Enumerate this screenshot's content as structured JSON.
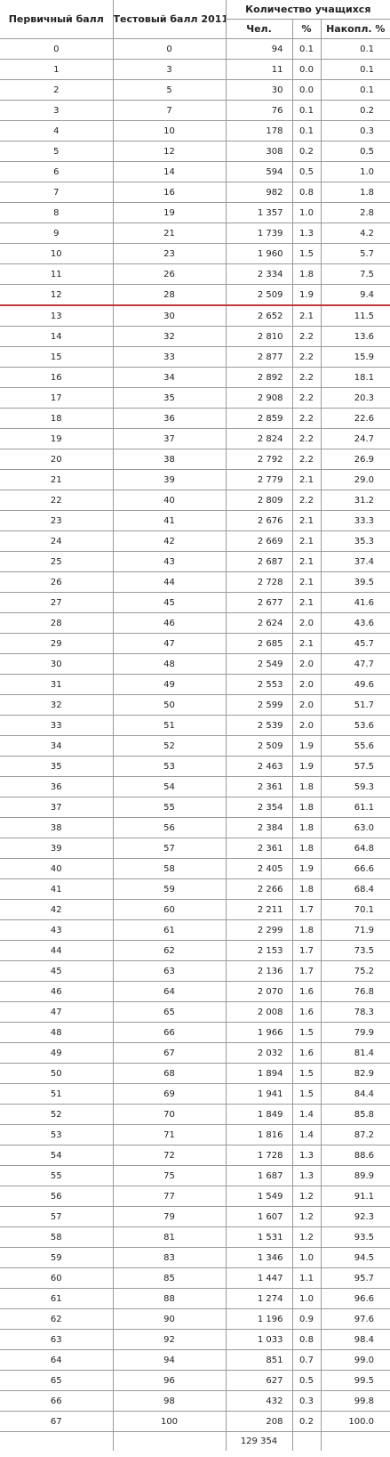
{
  "header": {
    "primary": "Первичный балл",
    "test": "Тестовый балл 2011",
    "students": "Количество учащихся",
    "count": "Чел.",
    "percent": "%",
    "cumulative": "Накопл. %"
  },
  "rows": [
    {
      "p": "0",
      "t": "0",
      "n": "94",
      "pc": "0.1",
      "cum": "0.1"
    },
    {
      "p": "1",
      "t": "3",
      "n": "11",
      "pc": "0.0",
      "cum": "0.1"
    },
    {
      "p": "2",
      "t": "5",
      "n": "30",
      "pc": "0.0",
      "cum": "0.1"
    },
    {
      "p": "3",
      "t": "7",
      "n": "76",
      "pc": "0.1",
      "cum": "0.2"
    },
    {
      "p": "4",
      "t": "10",
      "n": "178",
      "pc": "0.1",
      "cum": "0.3"
    },
    {
      "p": "5",
      "t": "12",
      "n": "308",
      "pc": "0.2",
      "cum": "0.5"
    },
    {
      "p": "6",
      "t": "14",
      "n": "594",
      "pc": "0.5",
      "cum": "1.0"
    },
    {
      "p": "7",
      "t": "16",
      "n": "982",
      "pc": "0.8",
      "cum": "1.8"
    },
    {
      "p": "8",
      "t": "19",
      "n": "1 357",
      "pc": "1.0",
      "cum": "2.8"
    },
    {
      "p": "9",
      "t": "21",
      "n": "1 739",
      "pc": "1.3",
      "cum": "4.2"
    },
    {
      "p": "10",
      "t": "23",
      "n": "1 960",
      "pc": "1.5",
      "cum": "5.7"
    },
    {
      "p": "11",
      "t": "26",
      "n": "2 334",
      "pc": "1.8",
      "cum": "7.5"
    },
    {
      "p": "12",
      "t": "28",
      "n": "2 509",
      "pc": "1.9",
      "cum": "9.4"
    },
    {
      "p": "13",
      "t": "30",
      "n": "2 652",
      "pc": "2.1",
      "cum": "11.5"
    },
    {
      "p": "14",
      "t": "32",
      "n": "2 810",
      "pc": "2.2",
      "cum": "13.6"
    },
    {
      "p": "15",
      "t": "33",
      "n": "2 877",
      "pc": "2.2",
      "cum": "15.9"
    },
    {
      "p": "16",
      "t": "34",
      "n": "2 892",
      "pc": "2.2",
      "cum": "18.1"
    },
    {
      "p": "17",
      "t": "35",
      "n": "2 908",
      "pc": "2.2",
      "cum": "20.3"
    },
    {
      "p": "18",
      "t": "36",
      "n": "2 859",
      "pc": "2.2",
      "cum": "22.6"
    },
    {
      "p": "19",
      "t": "37",
      "n": "2 824",
      "pc": "2.2",
      "cum": "24.7"
    },
    {
      "p": "20",
      "t": "38",
      "n": "2 792",
      "pc": "2.2",
      "cum": "26.9"
    },
    {
      "p": "21",
      "t": "39",
      "n": "2 779",
      "pc": "2.1",
      "cum": "29.0"
    },
    {
      "p": "22",
      "t": "40",
      "n": "2 809",
      "pc": "2.2",
      "cum": "31.2"
    },
    {
      "p": "23",
      "t": "41",
      "n": "2 676",
      "pc": "2.1",
      "cum": "33.3"
    },
    {
      "p": "24",
      "t": "42",
      "n": "2 669",
      "pc": "2.1",
      "cum": "35.3"
    },
    {
      "p": "25",
      "t": "43",
      "n": "2 687",
      "pc": "2.1",
      "cum": "37.4"
    },
    {
      "p": "26",
      "t": "44",
      "n": "2 728",
      "pc": "2.1",
      "cum": "39.5"
    },
    {
      "p": "27",
      "t": "45",
      "n": "2 677",
      "pc": "2.1",
      "cum": "41.6"
    },
    {
      "p": "28",
      "t": "46",
      "n": "2 624",
      "pc": "2.0",
      "cum": "43.6"
    },
    {
      "p": "29",
      "t": "47",
      "n": "2 685",
      "pc": "2.1",
      "cum": "45.7"
    },
    {
      "p": "30",
      "t": "48",
      "n": "2 549",
      "pc": "2.0",
      "cum": "47.7"
    },
    {
      "p": "31",
      "t": "49",
      "n": "2 553",
      "pc": "2.0",
      "cum": "49.6"
    },
    {
      "p": "32",
      "t": "50",
      "n": "2 599",
      "pc": "2.0",
      "cum": "51.7"
    },
    {
      "p": "33",
      "t": "51",
      "n": "2 539",
      "pc": "2.0",
      "cum": "53.6"
    },
    {
      "p": "34",
      "t": "52",
      "n": "2 509",
      "pc": "1.9",
      "cum": "55.6"
    },
    {
      "p": "35",
      "t": "53",
      "n": "2 463",
      "pc": "1.9",
      "cum": "57.5"
    },
    {
      "p": "36",
      "t": "54",
      "n": "2 361",
      "pc": "1.8",
      "cum": "59.3"
    },
    {
      "p": "37",
      "t": "55",
      "n": "2 354",
      "pc": "1.8",
      "cum": "61.1"
    },
    {
      "p": "38",
      "t": "56",
      "n": "2 384",
      "pc": "1.8",
      "cum": "63.0"
    },
    {
      "p": "39",
      "t": "57",
      "n": "2 361",
      "pc": "1.8",
      "cum": "64.8"
    },
    {
      "p": "40",
      "t": "58",
      "n": "2 405",
      "pc": "1.9",
      "cum": "66.6"
    },
    {
      "p": "41",
      "t": "59",
      "n": "2 266",
      "pc": "1.8",
      "cum": "68.4"
    },
    {
      "p": "42",
      "t": "60",
      "n": "2 211",
      "pc": "1.7",
      "cum": "70.1"
    },
    {
      "p": "43",
      "t": "61",
      "n": "2 299",
      "pc": "1.8",
      "cum": "71.9"
    },
    {
      "p": "44",
      "t": "62",
      "n": "2 153",
      "pc": "1.7",
      "cum": "73.5"
    },
    {
      "p": "45",
      "t": "63",
      "n": "2 136",
      "pc": "1.7",
      "cum": "75.2"
    },
    {
      "p": "46",
      "t": "64",
      "n": "2 070",
      "pc": "1.6",
      "cum": "76.8"
    },
    {
      "p": "47",
      "t": "65",
      "n": "2 008",
      "pc": "1.6",
      "cum": "78.3"
    },
    {
      "p": "48",
      "t": "66",
      "n": "1 966",
      "pc": "1.5",
      "cum": "79.9"
    },
    {
      "p": "49",
      "t": "67",
      "n": "2 032",
      "pc": "1.6",
      "cum": "81.4"
    },
    {
      "p": "50",
      "t": "68",
      "n": "1 894",
      "pc": "1.5",
      "cum": "82.9"
    },
    {
      "p": "51",
      "t": "69",
      "n": "1 941",
      "pc": "1.5",
      "cum": "84.4"
    },
    {
      "p": "52",
      "t": "70",
      "n": "1 849",
      "pc": "1.4",
      "cum": "85.8"
    },
    {
      "p": "53",
      "t": "71",
      "n": "1 816",
      "pc": "1.4",
      "cum": "87.2"
    },
    {
      "p": "54",
      "t": "72",
      "n": "1 728",
      "pc": "1.3",
      "cum": "88.6"
    },
    {
      "p": "55",
      "t": "75",
      "n": "1 687",
      "pc": "1.3",
      "cum": "89.9"
    },
    {
      "p": "56",
      "t": "77",
      "n": "1 549",
      "pc": "1.2",
      "cum": "91.1"
    },
    {
      "p": "57",
      "t": "79",
      "n": "1 607",
      "pc": "1.2",
      "cum": "92.3"
    },
    {
      "p": "58",
      "t": "81",
      "n": "1 531",
      "pc": "1.2",
      "cum": "93.5"
    },
    {
      "p": "59",
      "t": "83",
      "n": "1 346",
      "pc": "1.0",
      "cum": "94.5"
    },
    {
      "p": "60",
      "t": "85",
      "n": "1 447",
      "pc": "1.1",
      "cum": "95.7"
    },
    {
      "p": "61",
      "t": "88",
      "n": "1 274",
      "pc": "1.0",
      "cum": "96.6"
    },
    {
      "p": "62",
      "t": "90",
      "n": "1 196",
      "pc": "0.9",
      "cum": "97.6"
    },
    {
      "p": "63",
      "t": "92",
      "n": "1 033",
      "pc": "0.8",
      "cum": "98.4"
    },
    {
      "p": "64",
      "t": "94",
      "n": "851",
      "pc": "0.7",
      "cum": "99.0"
    },
    {
      "p": "65",
      "t": "96",
      "n": "627",
      "pc": "0.5",
      "cum": "99.5"
    },
    {
      "p": "66",
      "t": "98",
      "n": "432",
      "pc": "0.3",
      "cum": "99.8"
    },
    {
      "p": "67",
      "t": "100",
      "n": "208",
      "pc": "0.2",
      "cum": "100.0"
    }
  ],
  "total": "129 354",
  "threshold_after_primary": "12",
  "colors": {
    "border": "#9a9a9a",
    "threshold_line": "#c0393b"
  }
}
